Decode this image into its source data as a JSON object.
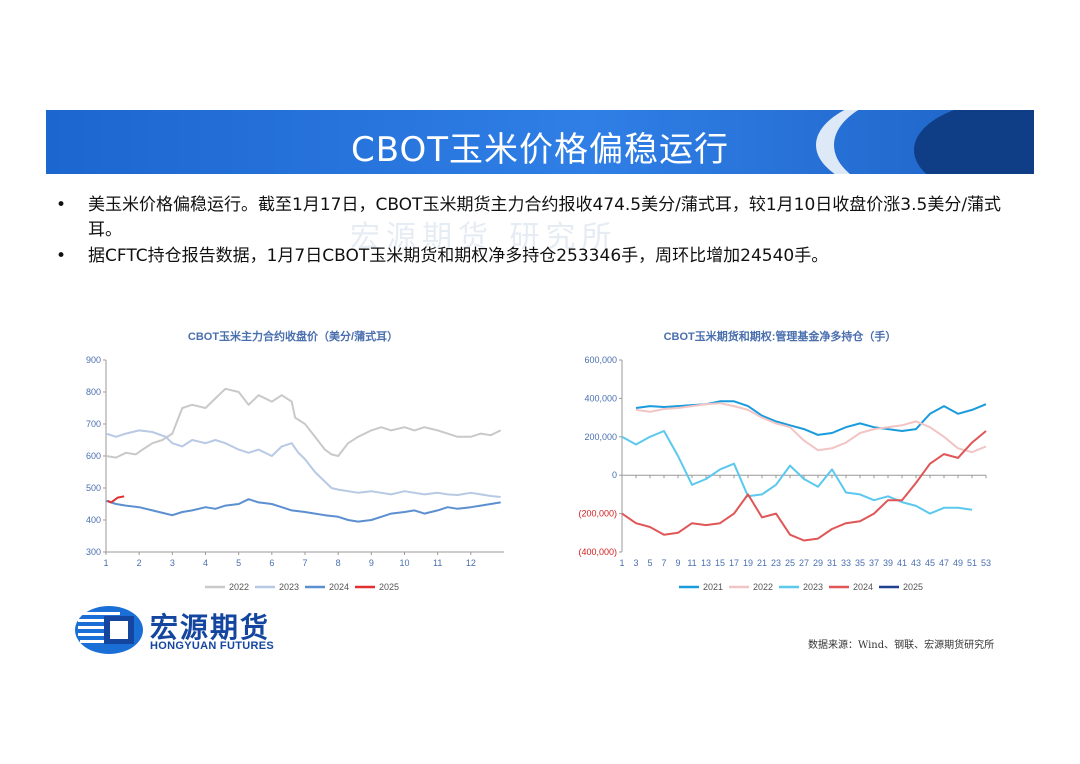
{
  "header": {
    "title": "CBOT玉米价格偏稳运行"
  },
  "bullets": [
    "美玉米价格偏稳运行。截至1月17日，CBOT玉米期货主力合约报收474.5美分/蒲式耳，较1月10日收盘价涨3.5美分/蒲式耳。",
    "据CFTC持仓报告数据，1月7日CBOT玉米期货和期权净多持仓253346手，周环比增加24540手。"
  ],
  "bullet_symbol": "•",
  "watermark": "宏源期货 研究所",
  "logo": {
    "cn": "宏源期货",
    "en": "HONGYUAN FUTURES"
  },
  "source": "数据来源：Wind、钢联、宏源期货研究所",
  "chart_data": [
    {
      "type": "line",
      "title": "CBOT玉米主力合约收盘价（美分/蒲式耳）",
      "x_ticks": [
        "1",
        "2",
        "3",
        "4",
        "5",
        "6",
        "7",
        "8",
        "9",
        "10",
        "11",
        "12"
      ],
      "xlim": [
        1,
        13
      ],
      "ylim": [
        300,
        900
      ],
      "y_ticks": [
        "300",
        "400",
        "500",
        "600",
        "700",
        "800",
        "900"
      ],
      "y_tick_values": [
        300,
        400,
        500,
        600,
        700,
        800,
        900
      ],
      "legend_position": "bottom",
      "series": [
        {
          "name": "2022",
          "color": "#c9c9c9",
          "x": [
            1,
            1.3,
            1.6,
            1.9,
            2.1,
            2.4,
            2.7,
            3.0,
            3.3,
            3.6,
            4.0,
            4.3,
            4.6,
            5.0,
            5.3,
            5.6,
            6.0,
            6.3,
            6.6,
            6.7,
            7.0,
            7.3,
            7.6,
            7.8,
            8.0,
            8.3,
            8.6,
            9.0,
            9.3,
            9.6,
            10.0,
            10.3,
            10.6,
            11.0,
            11.3,
            11.6,
            12.0,
            12.3,
            12.6,
            12.9
          ],
          "values": [
            600,
            595,
            610,
            605,
            620,
            640,
            650,
            670,
            750,
            760,
            750,
            780,
            810,
            800,
            760,
            790,
            770,
            790,
            770,
            720,
            700,
            660,
            620,
            605,
            600,
            640,
            660,
            680,
            690,
            680,
            690,
            680,
            690,
            680,
            670,
            660,
            660,
            670,
            665,
            680
          ]
        },
        {
          "name": "2023",
          "color": "#b8c9e4",
          "x": [
            1,
            1.3,
            1.6,
            2.0,
            2.4,
            2.8,
            3.0,
            3.3,
            3.6,
            4.0,
            4.3,
            4.6,
            5.0,
            5.3,
            5.6,
            6.0,
            6.3,
            6.6,
            6.8,
            7.0,
            7.3,
            7.6,
            7.8,
            8.0,
            8.3,
            8.6,
            9.0,
            9.3,
            9.6,
            10.0,
            10.3,
            10.6,
            11.0,
            11.3,
            11.6,
            12.0,
            12.3,
            12.6,
            12.9
          ],
          "values": [
            670,
            660,
            670,
            680,
            675,
            660,
            640,
            630,
            650,
            640,
            650,
            640,
            620,
            610,
            620,
            600,
            630,
            640,
            610,
            590,
            550,
            520,
            500,
            495,
            490,
            485,
            490,
            485,
            480,
            490,
            485,
            480,
            485,
            480,
            478,
            485,
            480,
            475,
            472
          ]
        },
        {
          "name": "2024",
          "color": "#5b8fd0",
          "x": [
            1,
            1.3,
            1.6,
            2.0,
            2.4,
            2.8,
            3.0,
            3.3,
            3.6,
            4.0,
            4.3,
            4.6,
            5.0,
            5.3,
            5.6,
            6.0,
            6.3,
            6.6,
            7.0,
            7.3,
            7.6,
            8.0,
            8.3,
            8.6,
            9.0,
            9.3,
            9.6,
            10.0,
            10.3,
            10.6,
            11.0,
            11.3,
            11.6,
            12.0,
            12.3,
            12.6,
            12.9
          ],
          "values": [
            460,
            450,
            445,
            440,
            430,
            420,
            415,
            425,
            430,
            440,
            435,
            445,
            450,
            465,
            455,
            450,
            440,
            430,
            425,
            420,
            415,
            410,
            400,
            395,
            400,
            410,
            420,
            425,
            430,
            420,
            430,
            440,
            435,
            440,
            445,
            450,
            455
          ]
        },
        {
          "name": "2025",
          "color": "#e03030",
          "x": [
            1.05,
            1.15,
            1.25,
            1.35,
            1.45,
            1.55
          ],
          "values": [
            460,
            455,
            462,
            470,
            472,
            474
          ]
        }
      ]
    },
    {
      "type": "line",
      "title": "CBOT玉米期货和期权:管理基金净多持仓（手）",
      "x_ticks": [
        "1",
        "3",
        "5",
        "7",
        "9",
        "11",
        "13",
        "15",
        "17",
        "19",
        "21",
        "23",
        "25",
        "27",
        "29",
        "31",
        "33",
        "35",
        "37",
        "39",
        "41",
        "43",
        "45",
        "47",
        "49",
        "51",
        "53"
      ],
      "xlim": [
        1,
        53
      ],
      "ylim": [
        -400000,
        600000
      ],
      "y_ticks": [
        "(400,000)",
        "(200,000)",
        "0",
        "200,000",
        "400,000",
        "600,000"
      ],
      "y_tick_values": [
        -400000,
        -200000,
        0,
        200000,
        400000,
        600000
      ],
      "legend_position": "bottom",
      "series": [
        {
          "name": "2021",
          "color": "#1a9bdc",
          "x": [
            3,
            5,
            7,
            9,
            11,
            13,
            15,
            17,
            19,
            21,
            23,
            25,
            27,
            29,
            31,
            33,
            35,
            37,
            39,
            41,
            43,
            45,
            47,
            49,
            51,
            53
          ],
          "values": [
            350000,
            360000,
            355000,
            360000,
            365000,
            370000,
            385000,
            385000,
            360000,
            310000,
            280000,
            260000,
            240000,
            210000,
            220000,
            250000,
            270000,
            250000,
            240000,
            230000,
            240000,
            320000,
            360000,
            320000,
            340000,
            370000
          ]
        },
        {
          "name": "2022",
          "color": "#f2c4c4",
          "x": [
            3,
            5,
            7,
            9,
            11,
            13,
            15,
            17,
            19,
            21,
            23,
            25,
            27,
            29,
            31,
            33,
            35,
            37,
            39,
            41,
            43,
            45,
            47,
            49,
            51,
            53
          ],
          "values": [
            340000,
            330000,
            345000,
            350000,
            360000,
            370000,
            375000,
            360000,
            340000,
            300000,
            270000,
            250000,
            180000,
            130000,
            140000,
            170000,
            220000,
            240000,
            250000,
            260000,
            280000,
            250000,
            200000,
            140000,
            120000,
            150000
          ]
        },
        {
          "name": "2023",
          "color": "#5bc8ee",
          "x": [
            1,
            3,
            5,
            7,
            9,
            11,
            13,
            15,
            17,
            19,
            21,
            23,
            25,
            27,
            29,
            31,
            33,
            35,
            37,
            39,
            41,
            43,
            45,
            47,
            49,
            51
          ],
          "values": [
            200000,
            160000,
            200000,
            230000,
            100000,
            -50000,
            -20000,
            30000,
            60000,
            -110000,
            -100000,
            -50000,
            50000,
            -20000,
            -60000,
            30000,
            -90000,
            -100000,
            -130000,
            -110000,
            -140000,
            -160000,
            -200000,
            -170000,
            -170000,
            -180000
          ]
        },
        {
          "name": "2024",
          "color": "#e05656",
          "x": [
            1,
            3,
            5,
            7,
            9,
            11,
            13,
            15,
            17,
            19,
            21,
            23,
            25,
            27,
            29,
            31,
            33,
            35,
            37,
            39,
            41,
            43,
            45,
            47,
            49,
            51,
            53
          ],
          "values": [
            -200000,
            -250000,
            -270000,
            -310000,
            -300000,
            -250000,
            -260000,
            -250000,
            -200000,
            -100000,
            -220000,
            -200000,
            -310000,
            -340000,
            -330000,
            -280000,
            -250000,
            -240000,
            -200000,
            -130000,
            -130000,
            -40000,
            60000,
            110000,
            90000,
            170000,
            230000
          ]
        },
        {
          "name": "2025",
          "color": "#1f3f8f",
          "x": [],
          "values": []
        }
      ]
    }
  ]
}
